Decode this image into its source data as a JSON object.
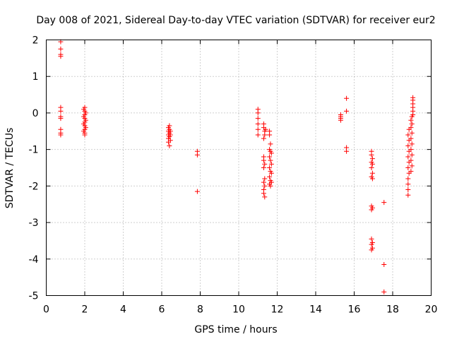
{
  "chart_data": {
    "type": "scatter",
    "title": "Day 008 of 2021, Sidereal Day-to-day VTEC variation (SDTVAR) for receiver eur2",
    "xlabel": "GPS time / hours",
    "ylabel": "SDTVAR / TECUs",
    "xlim": [
      0,
      20
    ],
    "ylim": [
      -5,
      2
    ],
    "xticks": [
      "0",
      "2",
      "4",
      "6",
      "8",
      "10",
      "12",
      "14",
      "16",
      "18",
      "20"
    ],
    "yticks": [
      "-5",
      "-4",
      "-3",
      "-2",
      "-1",
      "0",
      "1",
      "2"
    ],
    "grid": true,
    "marker": "+",
    "marker_color": "#ff0000",
    "series": [
      {
        "name": "SDTVAR",
        "points": [
          [
            0.75,
            1.95
          ],
          [
            0.75,
            1.75
          ],
          [
            0.75,
            1.6
          ],
          [
            0.75,
            1.55
          ],
          [
            0.75,
            0.15
          ],
          [
            0.75,
            0.05
          ],
          [
            0.75,
            -0.1
          ],
          [
            0.75,
            -0.15
          ],
          [
            0.75,
            -0.45
          ],
          [
            0.75,
            -0.55
          ],
          [
            0.75,
            -0.6
          ],
          [
            2.0,
            0.15
          ],
          [
            2.0,
            0.05
          ],
          [
            2.0,
            -0.05
          ],
          [
            2.0,
            -0.15
          ],
          [
            2.0,
            -0.25
          ],
          [
            2.0,
            -0.35
          ],
          [
            2.0,
            -0.45
          ],
          [
            2.0,
            -0.55
          ],
          [
            2.0,
            -0.6
          ],
          [
            1.95,
            0.1
          ],
          [
            1.95,
            -0.1
          ],
          [
            1.95,
            -0.3
          ],
          [
            1.95,
            -0.5
          ],
          [
            2.05,
            0.0
          ],
          [
            2.05,
            -0.2
          ],
          [
            2.05,
            -0.4
          ],
          [
            6.35,
            -0.4
          ],
          [
            6.35,
            -0.5
          ],
          [
            6.35,
            -0.6
          ],
          [
            6.35,
            -0.7
          ],
          [
            6.35,
            -0.8
          ],
          [
            6.4,
            -0.35
          ],
          [
            6.4,
            -0.45
          ],
          [
            6.4,
            -0.55
          ],
          [
            6.4,
            -0.65
          ],
          [
            6.4,
            -0.9
          ],
          [
            6.45,
            -0.5
          ],
          [
            6.45,
            -0.6
          ],
          [
            6.45,
            -0.75
          ],
          [
            7.85,
            -1.05
          ],
          [
            7.85,
            -1.15
          ],
          [
            7.85,
            -2.15
          ],
          [
            11.0,
            0.1
          ],
          [
            11.0,
            0.0
          ],
          [
            11.0,
            -0.15
          ],
          [
            11.0,
            -0.3
          ],
          [
            11.0,
            -0.45
          ],
          [
            11.0,
            -0.6
          ],
          [
            11.3,
            -0.3
          ],
          [
            11.3,
            -0.4
          ],
          [
            11.35,
            -0.5
          ],
          [
            11.35,
            -0.6
          ],
          [
            11.4,
            -0.45
          ],
          [
            11.3,
            -0.7
          ],
          [
            11.3,
            -1.2
          ],
          [
            11.3,
            -1.3
          ],
          [
            11.35,
            -1.4
          ],
          [
            11.3,
            -1.5
          ],
          [
            11.35,
            -1.8
          ],
          [
            11.3,
            -1.9
          ],
          [
            11.35,
            -2.0
          ],
          [
            11.3,
            -2.1
          ],
          [
            11.3,
            -2.2
          ],
          [
            11.35,
            -2.3
          ],
          [
            11.6,
            -0.5
          ],
          [
            11.6,
            -0.6
          ],
          [
            11.65,
            -0.85
          ],
          [
            11.6,
            -1.0
          ],
          [
            11.65,
            -1.05
          ],
          [
            11.7,
            -1.1
          ],
          [
            11.6,
            -1.2
          ],
          [
            11.65,
            -1.3
          ],
          [
            11.7,
            -1.4
          ],
          [
            11.6,
            -1.5
          ],
          [
            11.65,
            -1.6
          ],
          [
            11.7,
            -1.65
          ],
          [
            11.6,
            -1.75
          ],
          [
            11.65,
            -1.85
          ],
          [
            11.7,
            -1.9
          ],
          [
            11.6,
            -1.95
          ],
          [
            11.65,
            -2.0
          ],
          [
            15.3,
            -0.05
          ],
          [
            15.3,
            -0.1
          ],
          [
            15.3,
            -0.15
          ],
          [
            15.3,
            -0.2
          ],
          [
            15.6,
            0.4
          ],
          [
            15.6,
            0.05
          ],
          [
            15.6,
            -0.95
          ],
          [
            15.6,
            -1.05
          ],
          [
            16.9,
            -1.05
          ],
          [
            16.9,
            -1.15
          ],
          [
            16.95,
            -1.25
          ],
          [
            16.9,
            -1.35
          ],
          [
            16.95,
            -1.4
          ],
          [
            16.9,
            -1.5
          ],
          [
            16.95,
            -1.65
          ],
          [
            16.9,
            -1.75
          ],
          [
            16.95,
            -1.8
          ],
          [
            16.9,
            -2.55
          ],
          [
            16.95,
            -2.6
          ],
          [
            16.9,
            -2.65
          ],
          [
            16.9,
            -3.45
          ],
          [
            16.95,
            -3.55
          ],
          [
            16.9,
            -3.6
          ],
          [
            16.95,
            -3.7
          ],
          [
            16.9,
            -3.75
          ],
          [
            17.55,
            -2.45
          ],
          [
            17.55,
            -4.15
          ],
          [
            17.55,
            -4.9
          ],
          [
            18.8,
            -2.25
          ],
          [
            18.8,
            -2.1
          ],
          [
            18.8,
            -1.95
          ],
          [
            18.8,
            -1.8
          ],
          [
            18.85,
            -1.65
          ],
          [
            18.8,
            -1.5
          ],
          [
            18.85,
            -1.35
          ],
          [
            18.8,
            -1.2
          ],
          [
            18.85,
            -1.05
          ],
          [
            18.8,
            -0.9
          ],
          [
            18.85,
            -0.75
          ],
          [
            18.8,
            -0.6
          ],
          [
            18.85,
            -0.45
          ],
          [
            18.95,
            -1.6
          ],
          [
            19.0,
            -1.45
          ],
          [
            18.95,
            -1.3
          ],
          [
            19.0,
            -1.15
          ],
          [
            18.95,
            -1.0
          ],
          [
            19.0,
            -0.85
          ],
          [
            18.95,
            -0.7
          ],
          [
            19.0,
            -0.55
          ],
          [
            18.95,
            -0.4
          ],
          [
            19.0,
            -0.3
          ],
          [
            18.95,
            -0.2
          ],
          [
            19.0,
            -0.1
          ],
          [
            19.05,
            -0.05
          ],
          [
            19.05,
            0.05
          ],
          [
            19.05,
            0.15
          ],
          [
            19.05,
            0.25
          ],
          [
            19.05,
            0.35
          ],
          [
            19.05,
            0.42
          ]
        ]
      }
    ]
  }
}
